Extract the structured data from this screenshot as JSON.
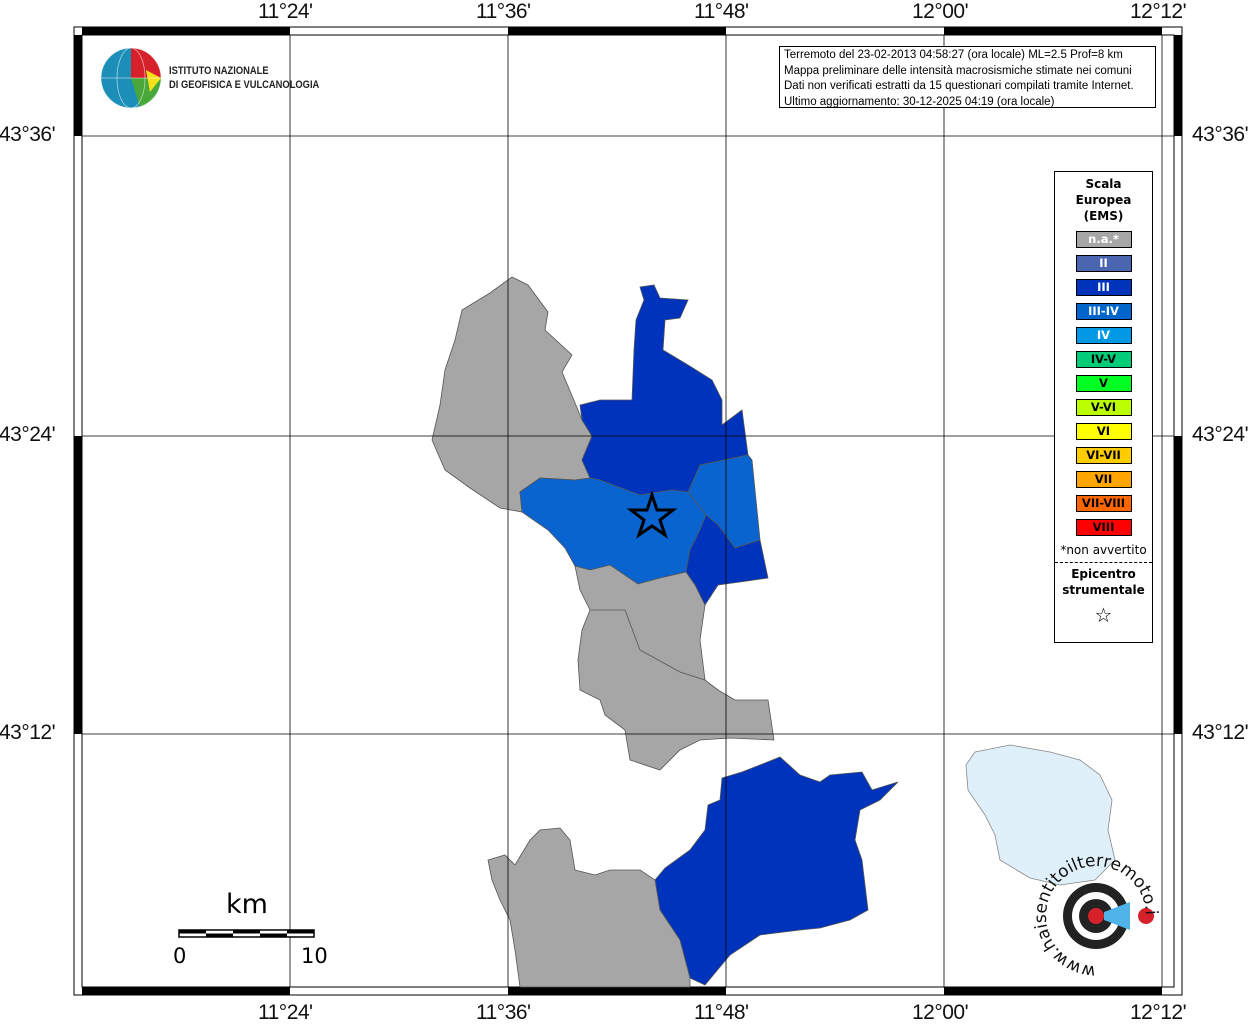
{
  "institute": {
    "line1": "ISTITUTO NAZIONALE",
    "line2": "DI GEOFISICA E VULCANOLOGIA"
  },
  "info": [
    "Terremoto del 23-02-2013 04:58:27 (ora locale) ML=2.5 Prof=8 km",
    "Mappa preliminare delle intensità macrosismiche stimate nei comuni",
    "Dati non verificati estratti da 15 questionari compilati tramite Internet.",
    "Ultimo aggiornamento: 30-12-2025 04:19 (ora locale)"
  ],
  "axes": {
    "longitude": [
      "11°24'",
      "11°36'",
      "11°48'",
      "12°00'",
      "12°12'"
    ],
    "latitude": [
      "43°36'",
      "43°24'",
      "43°12'"
    ]
  },
  "legend": {
    "title": [
      "Scala",
      "Europea",
      "(EMS)"
    ],
    "items": [
      {
        "label": "n.a.*",
        "color": "#a6a6a6",
        "text": "#ffffff"
      },
      {
        "label": "II",
        "color": "#4a66b0",
        "text": "#ffffff"
      },
      {
        "label": "III",
        "color": "#0033bb",
        "text": "#ffffff"
      },
      {
        "label": "III-IV",
        "color": "#0066cc",
        "text": "#ffffff"
      },
      {
        "label": "IV",
        "color": "#0099e6",
        "text": "#ffffff"
      },
      {
        "label": "IV-V",
        "color": "#00cc77",
        "text": "#000000"
      },
      {
        "label": "V",
        "color": "#00ff22",
        "text": "#000000"
      },
      {
        "label": "V-VI",
        "color": "#bbff00",
        "text": "#000000"
      },
      {
        "label": "VI",
        "color": "#ffff00",
        "text": "#000000"
      },
      {
        "label": "VI-VII",
        "color": "#ffcc00",
        "text": "#000000"
      },
      {
        "label": "VII",
        "color": "#ffa500",
        "text": "#000000"
      },
      {
        "label": "VII-VIII",
        "color": "#ff6600",
        "text": "#000000"
      },
      {
        "label": "VIII",
        "color": "#ff0000",
        "text": "#000000"
      }
    ],
    "note": "*non avvertito",
    "epicenter_title": [
      "Epicentro",
      "strumentale"
    ],
    "epicenter_symbol": "☆"
  },
  "scale_bar": {
    "unit": "km",
    "min": "0",
    "max": "10"
  },
  "map_colors": {
    "na": "#a6a6a6",
    "III": "#0033bb",
    "III-IV": "#0066cc",
    "lake": "#e0f0fb"
  },
  "site_logo": {
    "text": "www.haisentitoilterremoto.it"
  }
}
